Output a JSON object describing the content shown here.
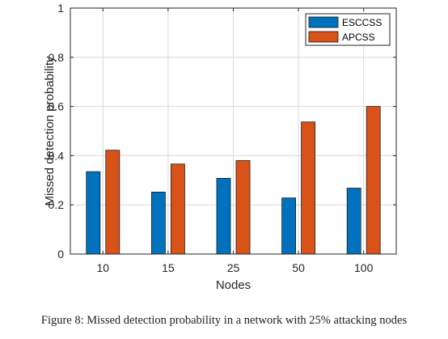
{
  "chart_data": {
    "type": "bar",
    "categories": [
      "10",
      "15",
      "25",
      "50",
      "100"
    ],
    "series": [
      {
        "name": "ESCCSS",
        "color": "#0072BD",
        "values": [
          0.335,
          0.252,
          0.308,
          0.228,
          0.268
        ]
      },
      {
        "name": "APCSS",
        "color": "#D95319",
        "values": [
          0.422,
          0.366,
          0.38,
          0.537,
          0.6
        ]
      }
    ],
    "xlabel": "Nodes",
    "ylabel": "Missed detection probability",
    "ylim": [
      0,
      1
    ],
    "yticks": [
      "0",
      "0.2",
      "0.4",
      "0.6",
      "0.8",
      "1"
    ],
    "grid": true,
    "legend_position": "top-right"
  },
  "caption": "Figure 8: Missed detection probability in a network with 25% attacking nodes"
}
